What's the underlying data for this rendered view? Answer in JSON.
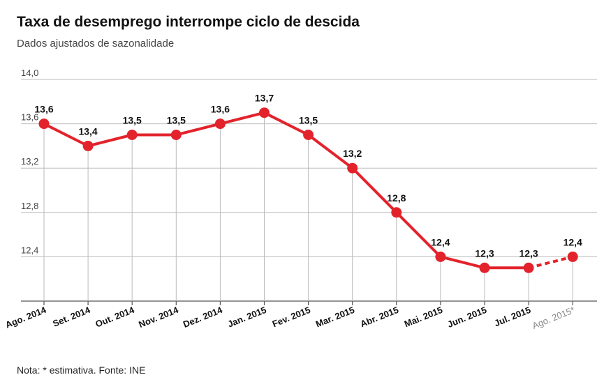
{
  "title": "Taxa de desemprego interrompe ciclo de descida",
  "subtitle": "Dados ajustados de sazonalidade",
  "note": "Nota: * estimativa. Fonte: INE",
  "colors": {
    "line": "#e3232c",
    "grid": "#bbbbbb",
    "axis": "#555555"
  },
  "chart_data": {
    "type": "line",
    "title": "Taxa de desemprego interrompe ciclo de descida",
    "subtitle": "Dados ajustados de sazonalidade",
    "categories": [
      "Ago. 2014",
      "Set. 2014",
      "Out. 2014",
      "Nov. 2014",
      "Dez. 2014",
      "Jan. 2015",
      "Fev. 2015",
      "Mar. 2015",
      "Abr. 2015",
      "Mai. 2015",
      "Jun. 2015",
      "Jul. 2015",
      "Ago. 2015*"
    ],
    "values": [
      13.6,
      13.4,
      13.5,
      13.5,
      13.6,
      13.7,
      13.5,
      13.2,
      12.8,
      12.4,
      12.3,
      12.3,
      12.4
    ],
    "data_labels": [
      "13,6",
      "13,4",
      "13,5",
      "13,5",
      "13,6",
      "13,7",
      "13,5",
      "13,2",
      "12,8",
      "12,4",
      "12,3",
      "12,3",
      "12,4"
    ],
    "estimated_index": 12,
    "ylim": [
      12.0,
      14.0
    ],
    "yticks": [
      12.4,
      12.8,
      13.2,
      13.6,
      14.0
    ],
    "ytick_labels": [
      "12,4",
      "12,8",
      "13,2",
      "13,6",
      "14,0"
    ],
    "grid": true,
    "xlabel": "",
    "ylabel": ""
  }
}
